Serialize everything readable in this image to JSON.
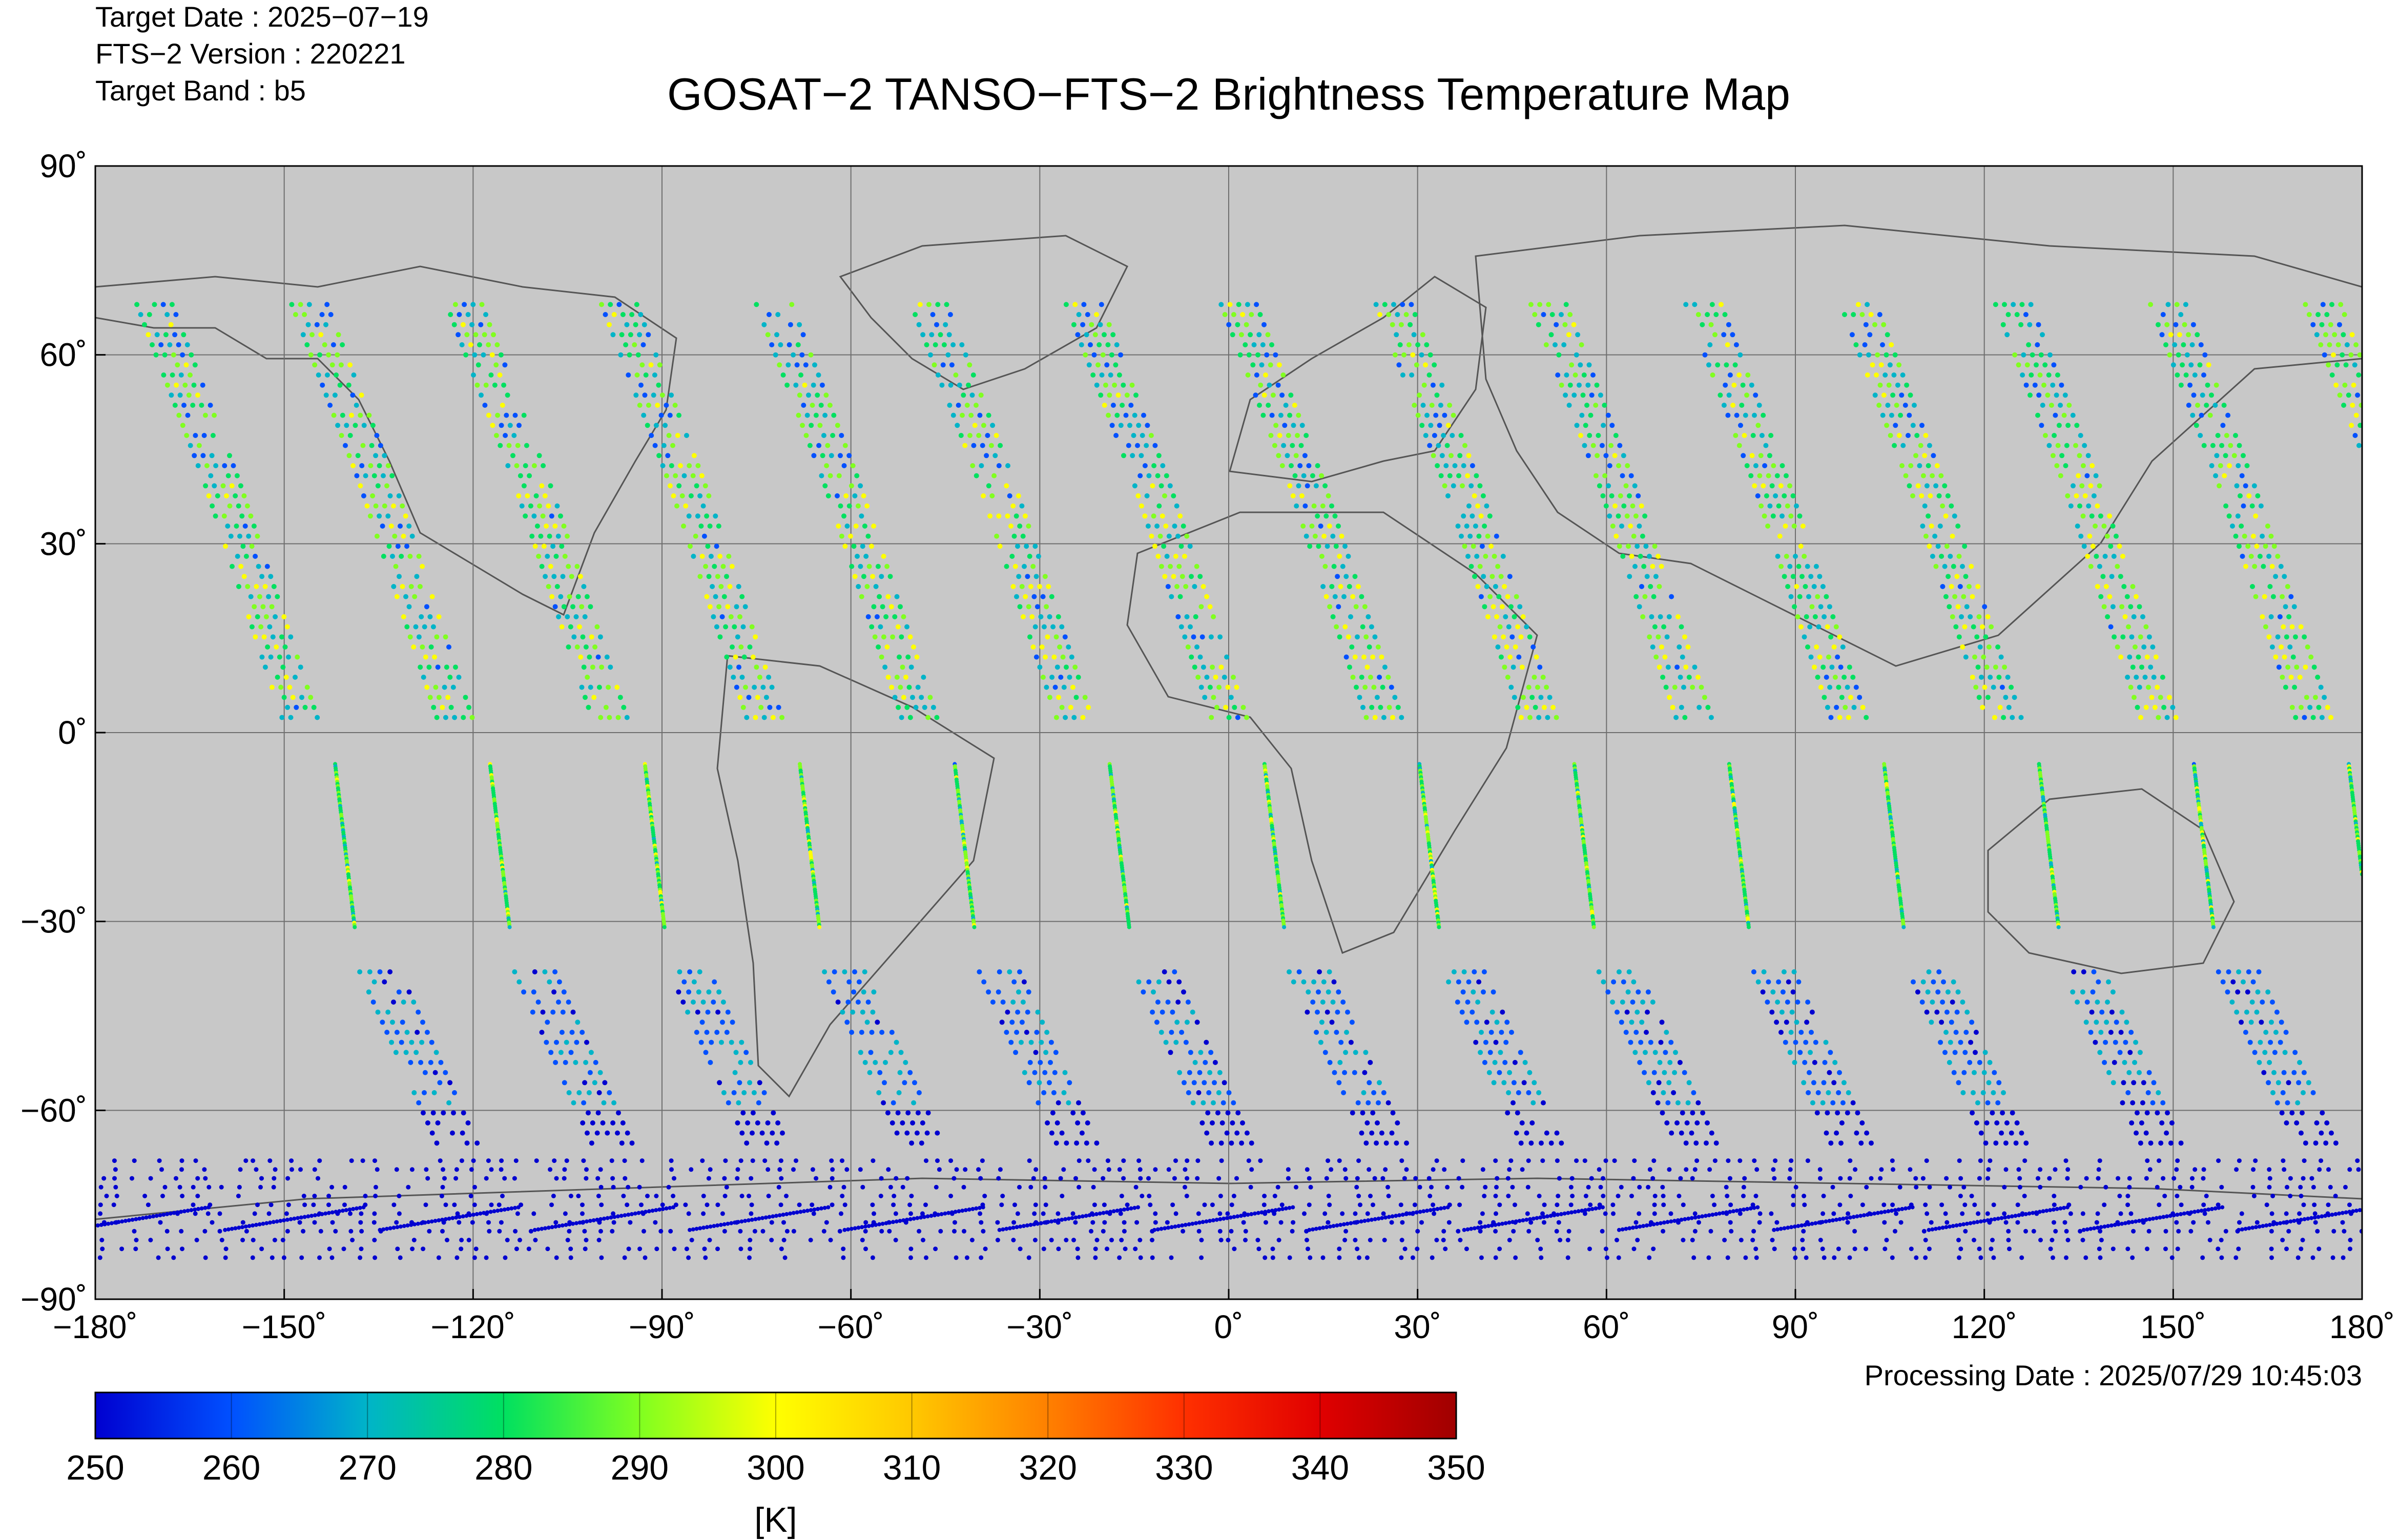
{
  "header": {
    "target_date": "Target Date   : 2025−07−19",
    "fts_version": "FTS−2 Version : 220221",
    "target_band": "Target Band   : b5"
  },
  "title": "GOSAT−2 TANSO−FTS−2 Brightness Temperature Map",
  "processing_date": "Processing Date : 2025/07/29 10:45:03",
  "map": {
    "projection": "equirectangular",
    "lon_range": [
      -180,
      180
    ],
    "lat_range": [
      -90,
      90
    ],
    "background_color": "#c8c8c8",
    "grid": true,
    "lon_ticks": [
      {
        "value": -180,
        "label": "−180˚"
      },
      {
        "value": -150,
        "label": "−150˚"
      },
      {
        "value": -120,
        "label": "−120˚"
      },
      {
        "value": -90,
        "label": "−90˚"
      },
      {
        "value": -60,
        "label": "−60˚"
      },
      {
        "value": -30,
        "label": "−30˚"
      },
      {
        "value": 0,
        "label": "0˚"
      },
      {
        "value": 30,
        "label": "30˚"
      },
      {
        "value": 60,
        "label": "60˚"
      },
      {
        "value": 90,
        "label": "90˚"
      },
      {
        "value": 120,
        "label": "120˚"
      },
      {
        "value": 150,
        "label": "150˚"
      },
      {
        "value": 180,
        "label": "180˚"
      }
    ],
    "lat_ticks": [
      {
        "value": 90,
        "label": "90˚"
      },
      {
        "value": 60,
        "label": "60˚"
      },
      {
        "value": 30,
        "label": "30˚"
      },
      {
        "value": 0,
        "label": "0˚"
      },
      {
        "value": -30,
        "label": "−30˚"
      },
      {
        "value": -60,
        "label": "−60˚"
      },
      {
        "value": -90,
        "label": "−90˚"
      }
    ]
  },
  "colorbar": {
    "min": 250,
    "max": 350,
    "ticks": [
      "250",
      "260",
      "270",
      "280",
      "290",
      "300",
      "310",
      "320",
      "330",
      "340",
      "350"
    ],
    "unit": "[K]",
    "colors": [
      "#0000d0",
      "#0050ff",
      "#00b4c8",
      "#00e060",
      "#80ff20",
      "#ffff00",
      "#ffc800",
      "#ff8000",
      "#ff3000",
      "#e00000",
      "#a00000"
    ]
  }
}
